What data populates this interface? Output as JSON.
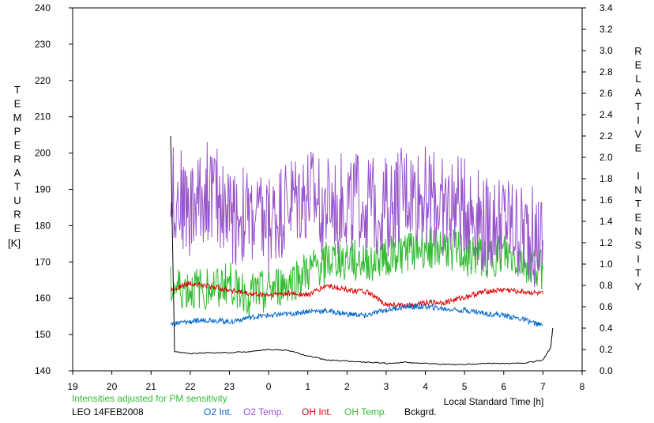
{
  "chart_data": {
    "type": "line",
    "title": "",
    "xlabel": "Local Standard Time [h]",
    "ylabel_left": "TEMPERATURE",
    "ylabel_left_unit": "[K]",
    "ylabel_right": "RELATIVE INTENSITY",
    "x_tick_labels": [
      "19",
      "20",
      "21",
      "22",
      "23",
      "0",
      "1",
      "2",
      "3",
      "4",
      "5",
      "6",
      "7",
      "8"
    ],
    "xlim": [
      19,
      32
    ],
    "ylim_left": [
      140,
      240
    ],
    "ylim_right": [
      0.0,
      3.4
    ],
    "y_left_ticks": [
      140,
      150,
      160,
      170,
      180,
      190,
      200,
      210,
      220,
      230,
      240
    ],
    "y_right_ticks": [
      "0.0",
      "0.2",
      "0.4",
      "0.6",
      "0.8",
      "1.0",
      "1.2",
      "1.4",
      "1.6",
      "1.8",
      "2.0",
      "2.2",
      "2.4",
      "2.6",
      "2.8",
      "3.0",
      "3.2",
      "3.4"
    ],
    "grid": false,
    "note": "Intensities adjusted for PM sensitivity",
    "station_date": "LEO 14FEB2008",
    "series": [
      {
        "name": "O2 Int.",
        "color": "#0066cc",
        "axis": "right",
        "x": [
          21.5,
          22,
          22.5,
          23,
          23.5,
          24,
          24.5,
          25,
          25.5,
          26,
          26.5,
          27,
          27.5,
          28,
          28.5,
          29,
          29.5,
          30,
          30.5,
          31
        ],
        "y": [
          0.44,
          0.46,
          0.48,
          0.46,
          0.5,
          0.52,
          0.53,
          0.56,
          0.56,
          0.53,
          0.52,
          0.57,
          0.6,
          0.6,
          0.58,
          0.57,
          0.54,
          0.52,
          0.48,
          0.42
        ]
      },
      {
        "name": "O2 Temp.",
        "color": "#9955cc",
        "axis": "left",
        "x": [
          21.5,
          22,
          22.5,
          23,
          23.5,
          24,
          24.5,
          25,
          25.5,
          26,
          26.5,
          27,
          27.5,
          28,
          28.5,
          29,
          29.5,
          30,
          30.5,
          31
        ],
        "y": [
          190,
          184,
          190,
          183,
          182,
          180,
          186,
          188,
          185,
          187,
          186,
          185,
          189,
          188,
          185,
          186,
          180,
          182,
          178,
          176
        ]
      },
      {
        "name": "OH Int.",
        "color": "#dd0000",
        "axis": "right",
        "x": [
          21.5,
          22,
          22.5,
          23,
          23.5,
          24,
          24.5,
          25,
          25.5,
          26,
          26.5,
          27,
          27.5,
          28,
          28.5,
          29,
          29.5,
          30,
          30.5,
          31
        ],
        "y": [
          0.76,
          0.82,
          0.79,
          0.76,
          0.72,
          0.71,
          0.73,
          0.71,
          0.8,
          0.76,
          0.74,
          0.62,
          0.61,
          0.64,
          0.64,
          0.69,
          0.74,
          0.76,
          0.74,
          0.72
        ]
      },
      {
        "name": "OH Temp.",
        "color": "#33bb33",
        "axis": "left",
        "x": [
          21.5,
          22,
          22.5,
          23,
          23.5,
          24,
          24.5,
          25,
          25.5,
          26,
          26.5,
          27,
          27.5,
          28,
          28.5,
          29,
          29.5,
          30,
          30.5,
          31
        ],
        "y": [
          163,
          162,
          163,
          164,
          161,
          162,
          164,
          167,
          170,
          171,
          170,
          172,
          173,
          174,
          174,
          172,
          171,
          172,
          170,
          168
        ]
      },
      {
        "name": "Bckgrd.",
        "color": "#000000",
        "axis": "right",
        "x": [
          21.5,
          21.6,
          22,
          22.5,
          23,
          23.5,
          24,
          24.5,
          25,
          25.5,
          26,
          26.5,
          27,
          27.5,
          28,
          28.5,
          29,
          29.5,
          30,
          30.5,
          31,
          31.2,
          31.25
        ],
        "y": [
          2.2,
          0.18,
          0.16,
          0.17,
          0.17,
          0.18,
          0.2,
          0.19,
          0.14,
          0.1,
          0.09,
          0.08,
          0.07,
          0.08,
          0.07,
          0.06,
          0.06,
          0.07,
          0.07,
          0.07,
          0.1,
          0.22,
          0.4
        ]
      }
    ]
  }
}
